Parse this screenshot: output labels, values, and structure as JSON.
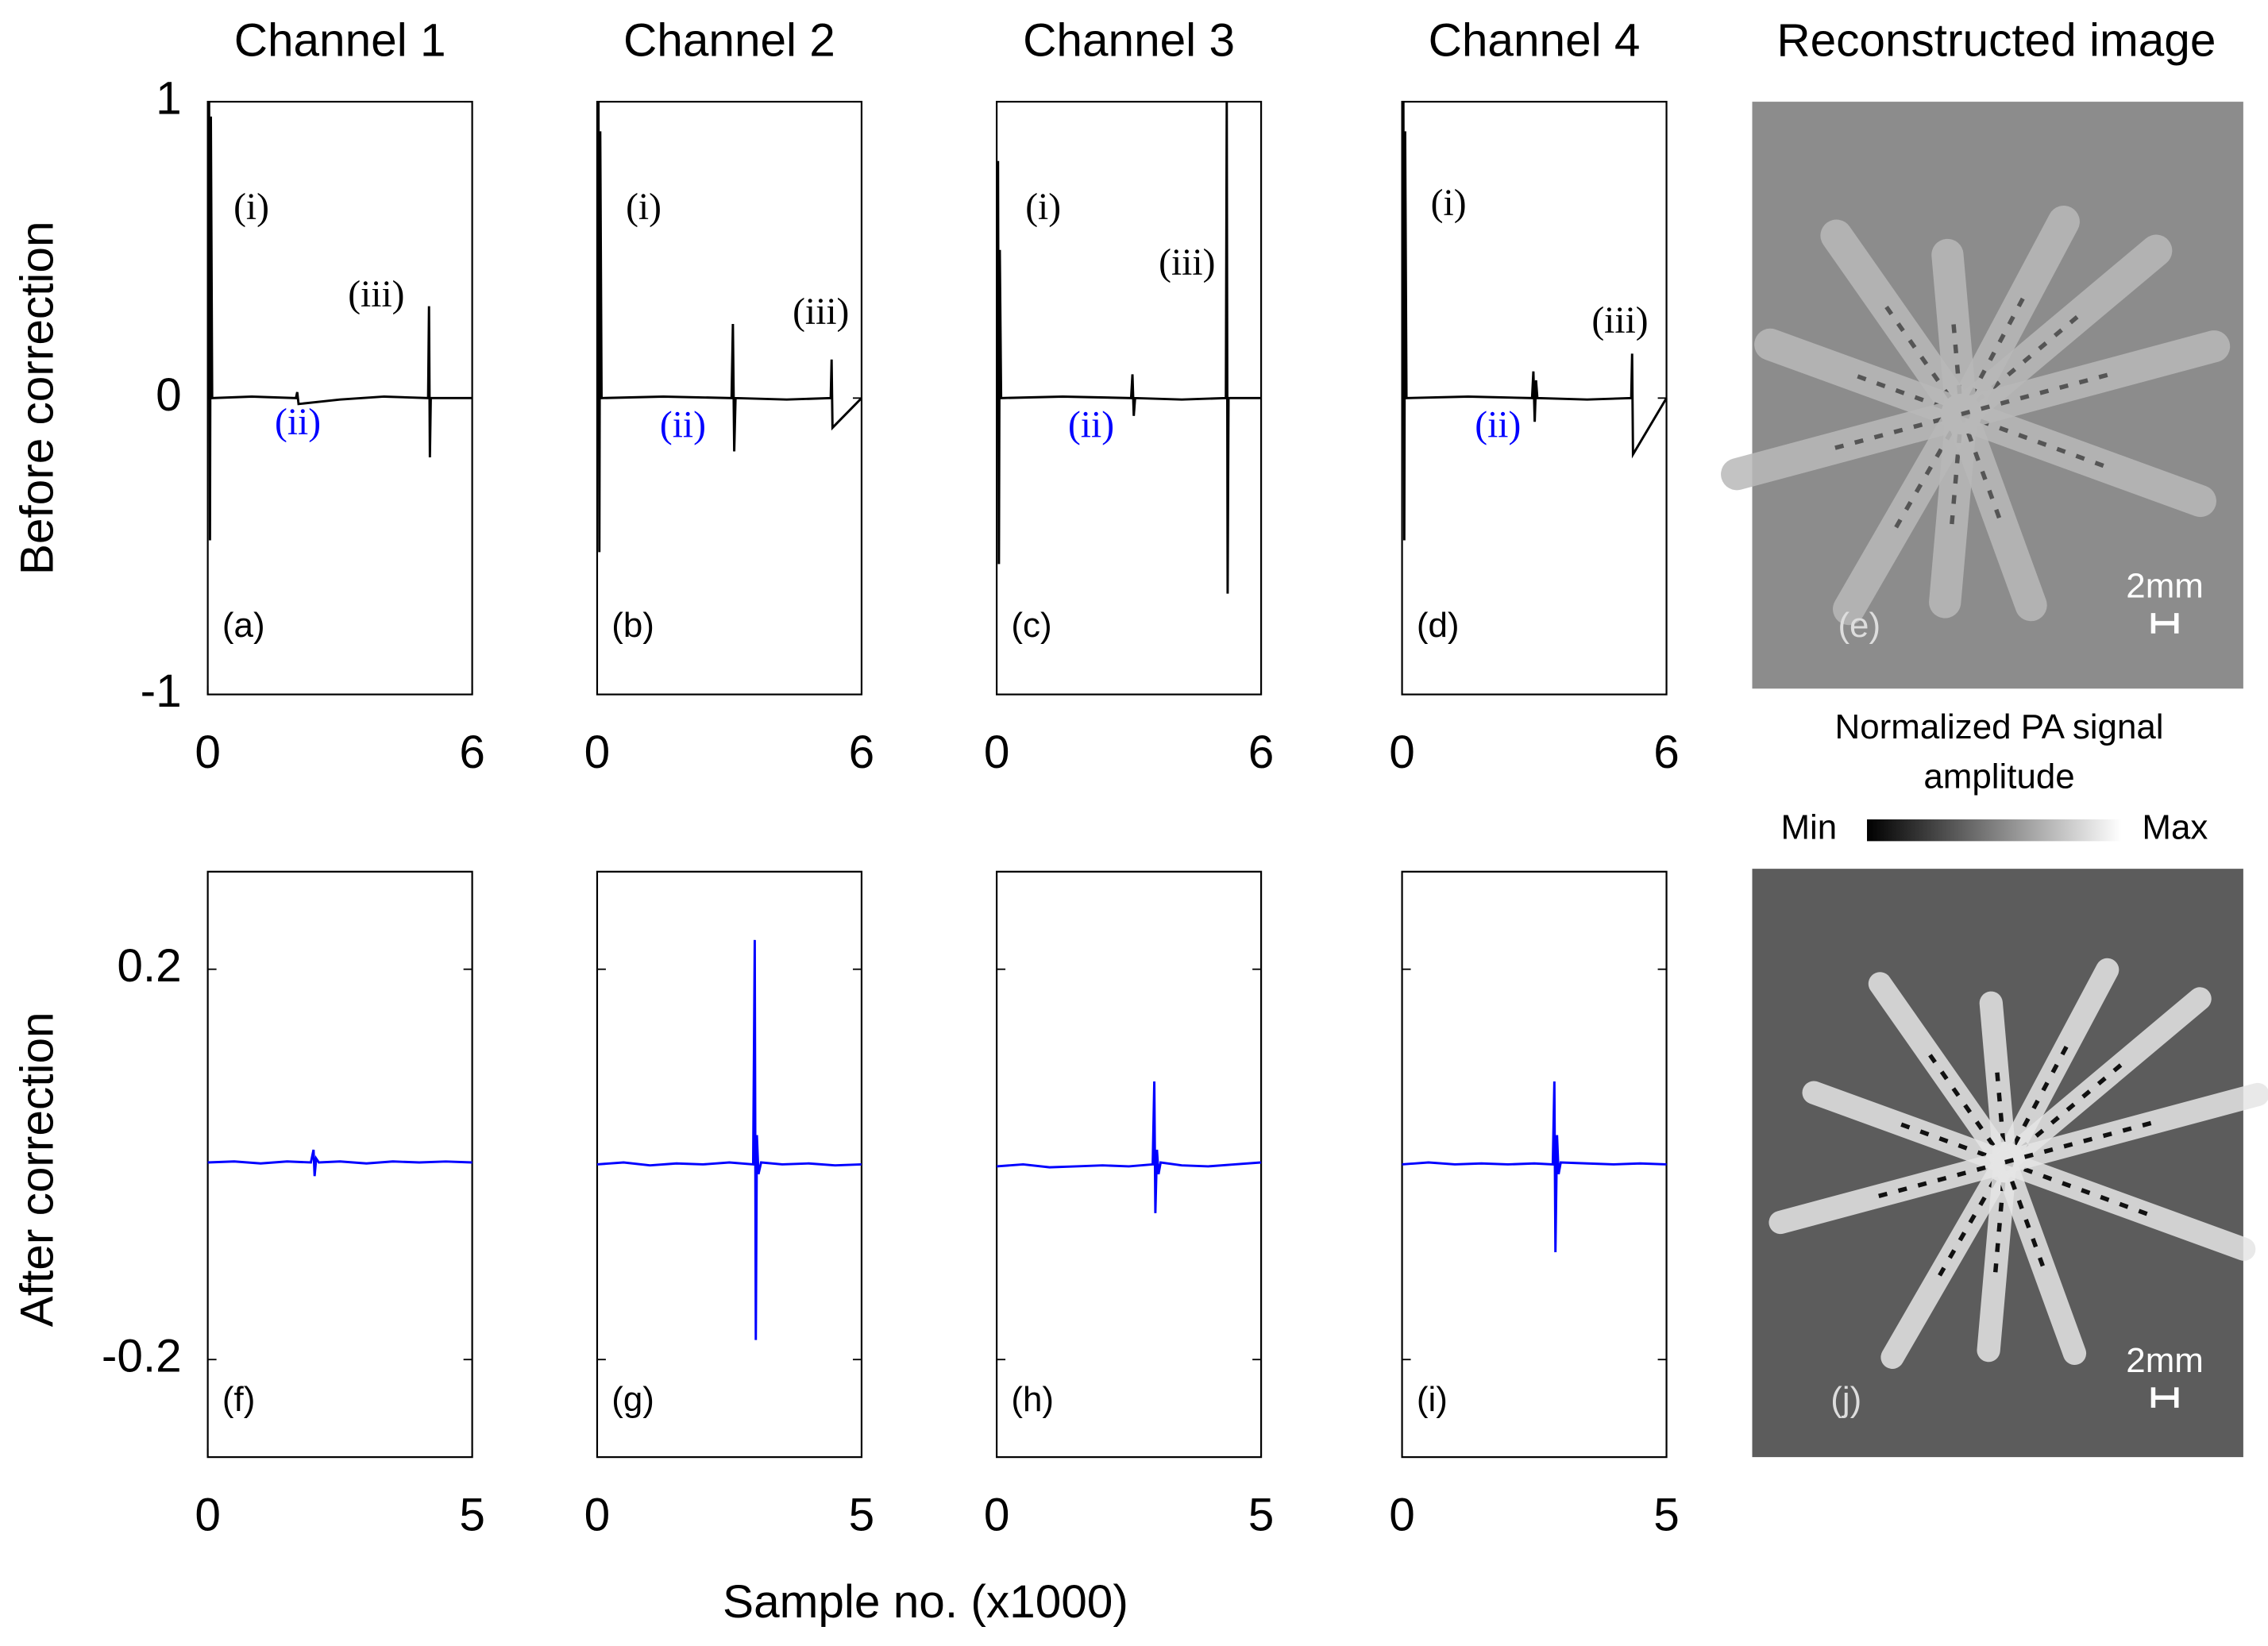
{
  "chart_data": [
    {
      "type": "line",
      "title": "Channel 1",
      "ylabel": "Before correction",
      "panel_label": "(a)",
      "annotations": [
        {
          "text": "(i)"
        },
        {
          "text": "(ii)",
          "color": "#0000ff"
        },
        {
          "text": "(iii)"
        }
      ],
      "x": [
        0,
        0.02,
        0.03,
        0.05,
        0.07,
        0.1,
        1,
        2.0,
        2.03,
        2.06,
        3,
        4,
        5.0,
        5.02,
        5.04,
        5.06,
        6
      ],
      "series": [
        {
          "color": "#000000",
          "values": [
            0,
            0,
            1,
            -0.48,
            0.95,
            0,
            0.005,
            0,
            0.02,
            -0.02,
            -0.005,
            0.005,
            0,
            0.31,
            -0.2,
            0,
            0
          ]
        }
      ],
      "xlim": [
        0,
        6
      ],
      "ylim": [
        -1,
        1
      ],
      "xticks": [
        0,
        6
      ],
      "yticks": [
        -1,
        0,
        1
      ]
    },
    {
      "type": "line",
      "title": "Channel 2",
      "panel_label": "(b)",
      "annotations": [
        {
          "text": "(i)"
        },
        {
          "text": "(ii)",
          "color": "#0000ff"
        },
        {
          "text": "(iii)"
        }
      ],
      "x": [
        0,
        0.02,
        0.03,
        0.05,
        0.07,
        0.1,
        1.5,
        3.05,
        3.08,
        3.11,
        3.14,
        4.3,
        5.3,
        5.32,
        5.34,
        6
      ],
      "series": [
        {
          "color": "#000000",
          "values": [
            0,
            0,
            1,
            -0.52,
            0.9,
            0,
            0.005,
            0,
            0.25,
            -0.18,
            0,
            -0.005,
            0,
            0.13,
            -0.1,
            0
          ]
        }
      ],
      "xlim": [
        0,
        6
      ],
      "ylim": [
        -1,
        1
      ],
      "xticks": [
        0,
        6
      ]
    },
    {
      "type": "line",
      "title": "Channel 3",
      "panel_label": "(c)",
      "annotations": [
        {
          "text": "(i)"
        },
        {
          "text": "(ii)",
          "color": "#0000ff"
        },
        {
          "text": "(iii)"
        }
      ],
      "x": [
        0,
        0.02,
        0.03,
        0.05,
        0.07,
        0.1,
        1.5,
        3.05,
        3.08,
        3.11,
        3.14,
        4.2,
        5.2,
        5.22,
        5.24,
        5.26,
        6
      ],
      "series": [
        {
          "color": "#000000",
          "values": [
            0,
            0,
            0.8,
            -0.56,
            0.5,
            0,
            0.005,
            0,
            0.08,
            -0.06,
            0,
            -0.005,
            0,
            1,
            -0.66,
            0,
            0
          ]
        }
      ],
      "xlim": [
        0,
        6
      ],
      "ylim": [
        -1,
        1
      ],
      "xticks": [
        0,
        6
      ]
    },
    {
      "type": "line",
      "title": "Channel 4",
      "panel_label": "(d)",
      "annotations": [
        {
          "text": "(i)"
        },
        {
          "text": "(ii)",
          "color": "#0000ff"
        },
        {
          "text": "(iii)"
        }
      ],
      "x": [
        0,
        0.02,
        0.03,
        0.05,
        0.07,
        0.1,
        1.5,
        2.95,
        2.98,
        3.01,
        3.04,
        3.07,
        4.2,
        5.2,
        5.22,
        5.24,
        6
      ],
      "series": [
        {
          "color": "#000000",
          "values": [
            0,
            0,
            1,
            -0.48,
            0.9,
            0,
            0.005,
            0,
            0.09,
            -0.08,
            0.06,
            0,
            -0.005,
            0,
            0.15,
            -0.19,
            0
          ]
        }
      ],
      "xlim": [
        0,
        6
      ],
      "ylim": [
        -1,
        1
      ],
      "xticks": [
        0,
        6
      ]
    },
    {
      "type": "line",
      "ylabel": "After correction",
      "panel_label": "(f)",
      "x": [
        0,
        0.5,
        1,
        1.5,
        1.95,
        2.0,
        2.02,
        2.05,
        2.1,
        2.5,
        3,
        3.5,
        4,
        4.5,
        5
      ],
      "series": [
        {
          "color": "#0000ff",
          "values": [
            0.002,
            0.003,
            0.001,
            0.003,
            0.002,
            0.015,
            -0.012,
            0.006,
            0.002,
            0.003,
            0.001,
            0.003,
            0.002,
            0.003,
            0.002
          ]
        }
      ],
      "xlim": [
        0,
        5
      ],
      "ylim": [
        -0.3,
        0.3
      ],
      "xticks": [
        0,
        5
      ],
      "yticks": [
        -0.2,
        0.2
      ]
    },
    {
      "type": "line",
      "panel_label": "(g)",
      "x": [
        0,
        0.5,
        1,
        1.5,
        2,
        2.5,
        2.95,
        2.98,
        3.0,
        3.02,
        3.05,
        3.1,
        3.5,
        4,
        4.5,
        5
      ],
      "series": [
        {
          "color": "#0000ff",
          "values": [
            0,
            0.002,
            -0.001,
            0.001,
            0,
            0.002,
            0,
            0.23,
            -0.18,
            0.03,
            -0.01,
            0.002,
            0,
            0.001,
            -0.001,
            0
          ]
        }
      ],
      "xlim": [
        0,
        5
      ],
      "ylim": [
        -0.3,
        0.3
      ],
      "xticks": [
        0,
        5
      ]
    },
    {
      "type": "line",
      "panel_label": "(h)",
      "x": [
        0,
        0.5,
        1,
        1.5,
        2,
        2.5,
        2.95,
        2.98,
        3.0,
        3.03,
        3.06,
        3.1,
        3.5,
        4,
        4.5,
        5
      ],
      "series": [
        {
          "color": "#0000ff",
          "values": [
            -0.002,
            0,
            -0.003,
            -0.002,
            -0.001,
            -0.002,
            0,
            0.085,
            -0.05,
            0.015,
            -0.01,
            0.002,
            -0.001,
            -0.002,
            0,
            0.002
          ]
        }
      ],
      "xlim": [
        0,
        5
      ],
      "ylim": [
        -0.3,
        0.3
      ],
      "xticks": [
        0,
        5
      ]
    },
    {
      "type": "line",
      "panel_label": "(i)",
      "x": [
        0,
        0.5,
        1,
        1.5,
        2,
        2.5,
        2.85,
        2.88,
        2.9,
        2.93,
        2.96,
        3.0,
        3.5,
        4,
        4.5,
        5
      ],
      "series": [
        {
          "color": "#0000ff",
          "values": [
            0,
            0.002,
            0,
            0.001,
            0,
            0.001,
            0,
            0.085,
            -0.09,
            0.03,
            -0.01,
            0.002,
            0.001,
            0,
            0.001,
            0
          ]
        }
      ],
      "xlim": [
        0,
        5
      ],
      "ylim": [
        -0.3,
        0.3
      ],
      "xticks": [
        0,
        5
      ]
    }
  ],
  "figure": {
    "xlabel": "Sample no. (x1000)",
    "images": [
      {
        "title": "Reconstructed image",
        "label": "(e)",
        "scale_bar": "2mm"
      },
      {
        "label": "(j)",
        "scale_bar": "2mm"
      }
    ],
    "colorbar": {
      "label_lines": [
        "Normalized PA signal",
        "amplitude"
      ],
      "min": "Min",
      "max": "Max"
    }
  }
}
